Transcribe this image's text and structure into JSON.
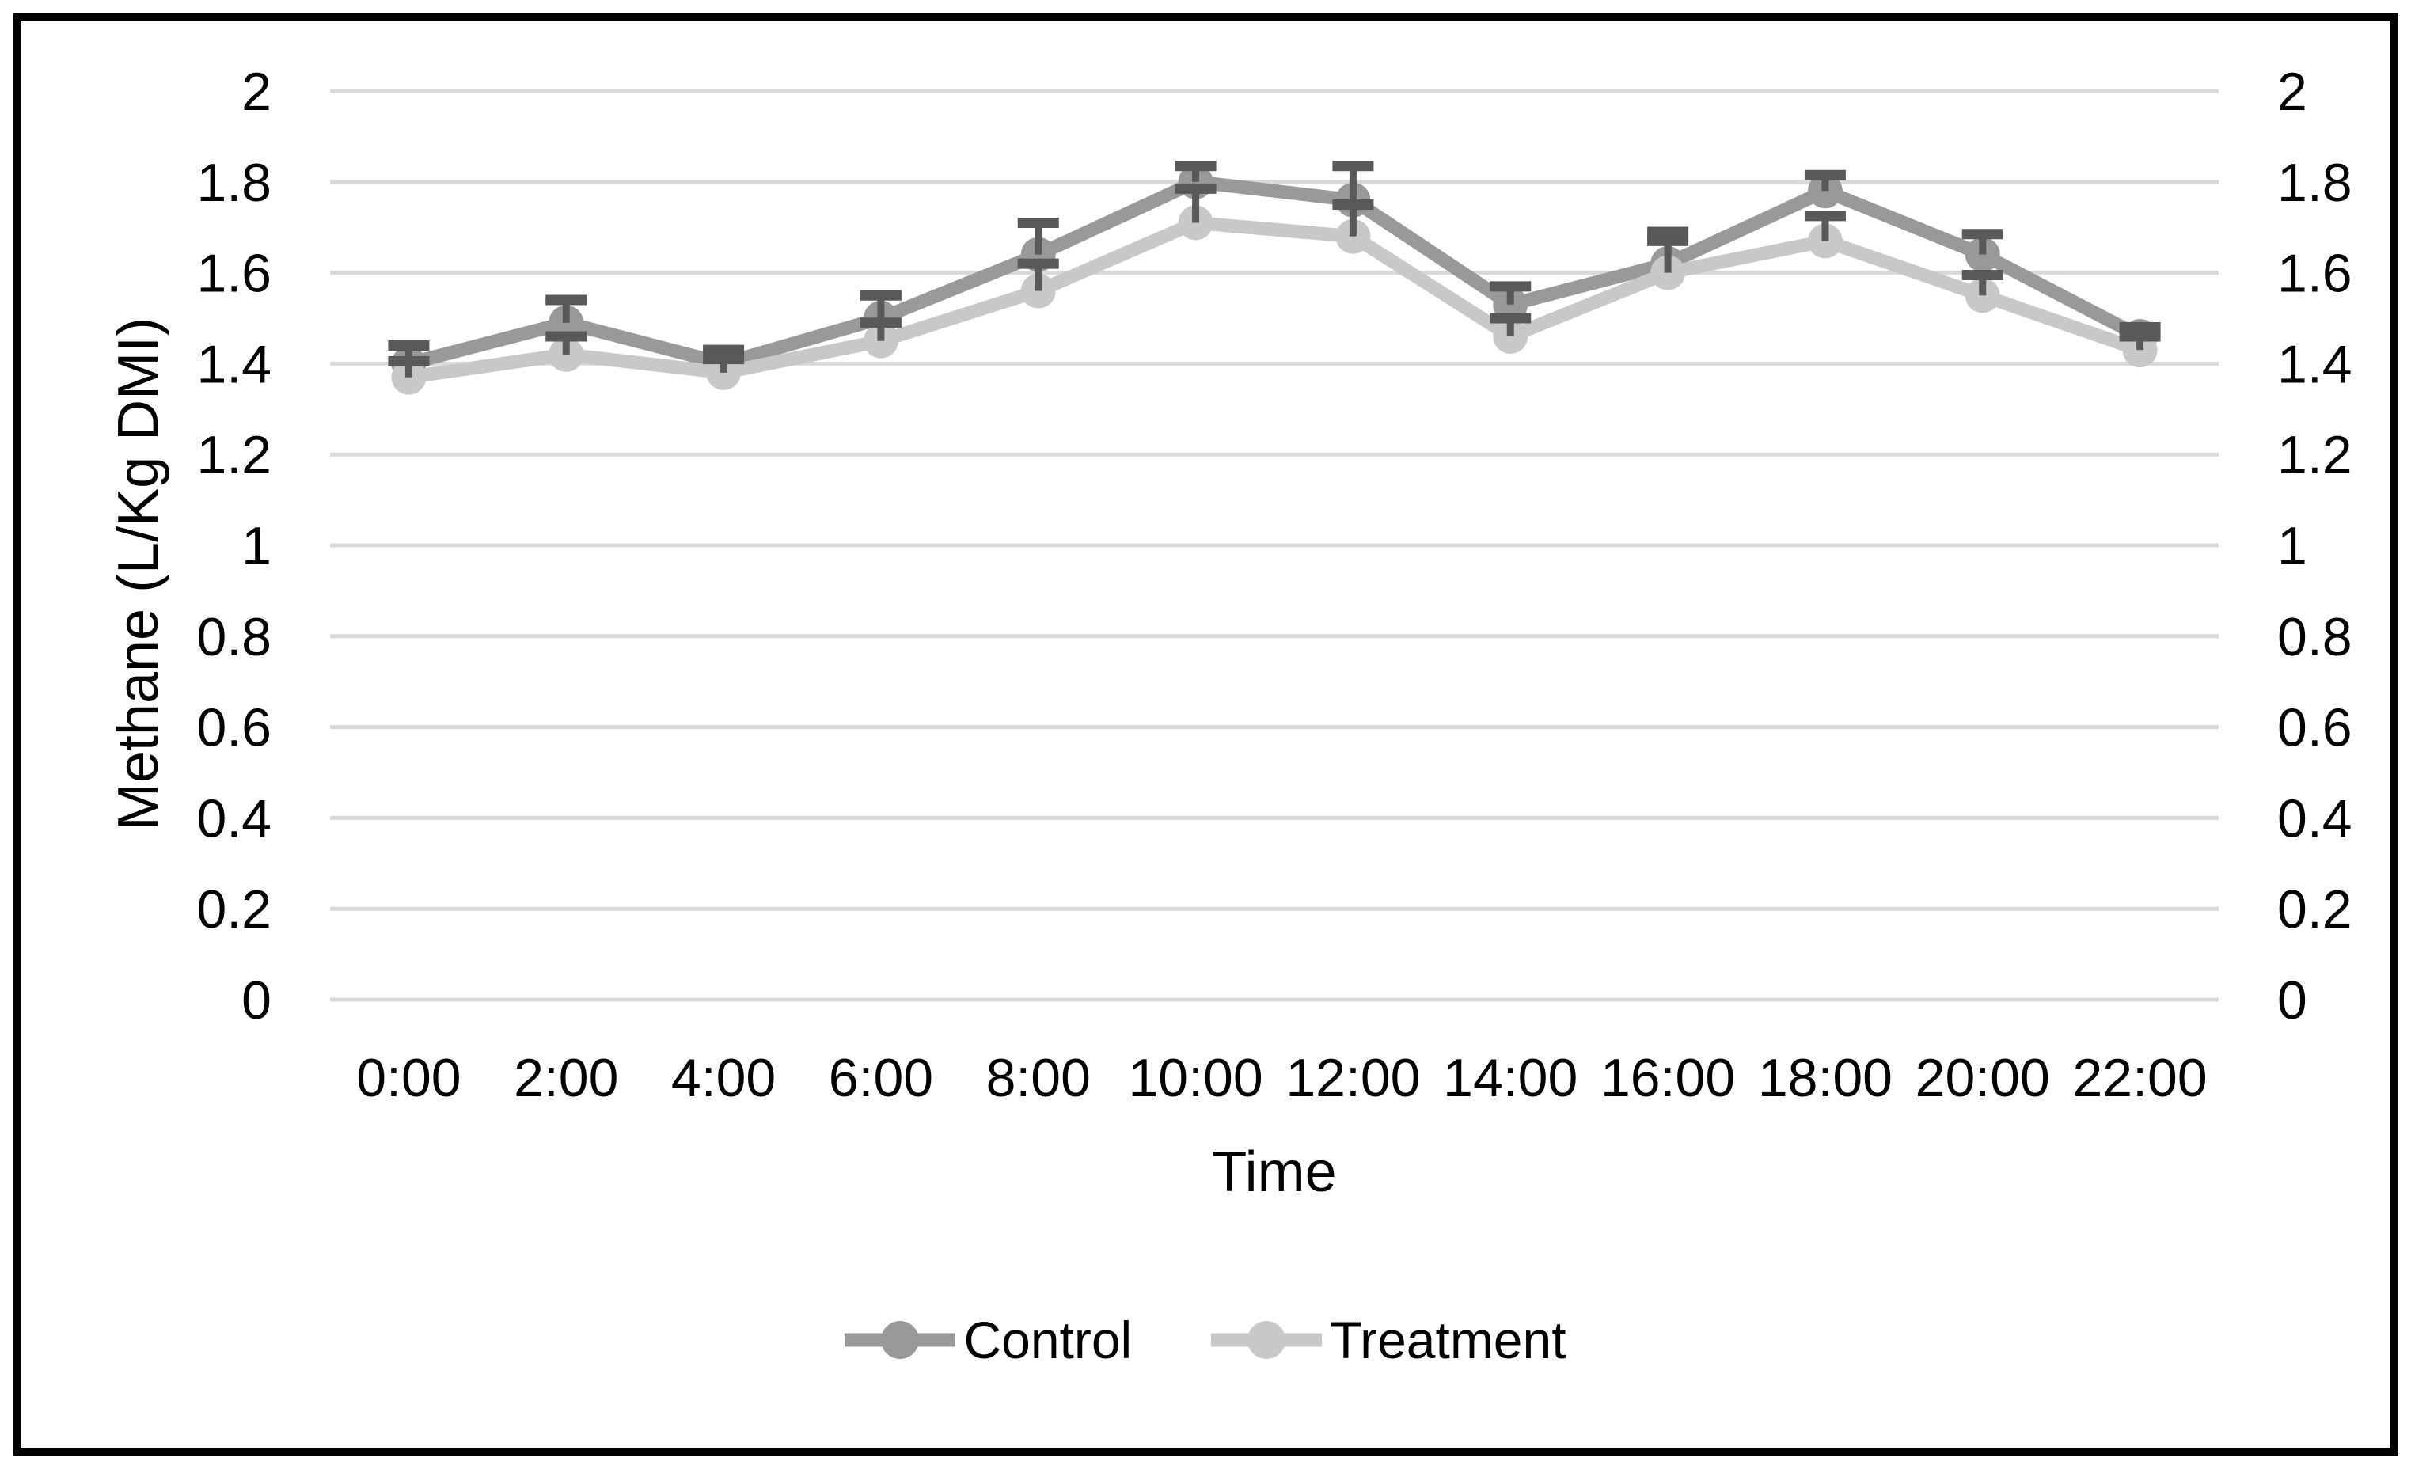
{
  "chart_data": {
    "type": "line",
    "title": "",
    "xlabel": "Time",
    "ylabel": "Methane (L/Kg DMI)",
    "categories": [
      "0:00",
      "2:00",
      "4:00",
      "6:00",
      "8:00",
      "10:00",
      "12:00",
      "14:00",
      "16:00",
      "18:00",
      "20:00",
      "22:00"
    ],
    "series": [
      {
        "name": "Control",
        "color": "#999999",
        "values": [
          1.4,
          1.49,
          1.4,
          1.5,
          1.64,
          1.8,
          1.76,
          1.53,
          1.62,
          1.78,
          1.64,
          1.46
        ],
        "errors_up": [
          0.04,
          0.05,
          0.03,
          0.05,
          0.07,
          0.035,
          0.075,
          0.04,
          0.07,
          0.035,
          0.045,
          0.02
        ]
      },
      {
        "name": "Treatment",
        "color": "#c8c8c8",
        "values": [
          1.37,
          1.42,
          1.38,
          1.45,
          1.56,
          1.71,
          1.68,
          1.46,
          1.6,
          1.67,
          1.55,
          1.43
        ],
        "errors_up": [
          0.035,
          0.04,
          0.03,
          0.04,
          0.06,
          0.075,
          0.07,
          0.04,
          0.07,
          0.055,
          0.045,
          0.03
        ]
      }
    ],
    "ylim": [
      0,
      2
    ],
    "ytick_step": 0.2,
    "ytick_labels": [
      "0",
      "0.2",
      "0.4",
      "0.6",
      "0.8",
      "1",
      "1.2",
      "1.4",
      "1.6",
      "1.8",
      "2"
    ],
    "grid": "horizontal",
    "gridline_color": "#d9d9d9",
    "error_bar_color": "#595959",
    "axis_text_color": "#000000",
    "background_color": "#ffffff",
    "border_color": "#000000",
    "legend_position": "bottom",
    "axes_labels_sides": "both"
  }
}
